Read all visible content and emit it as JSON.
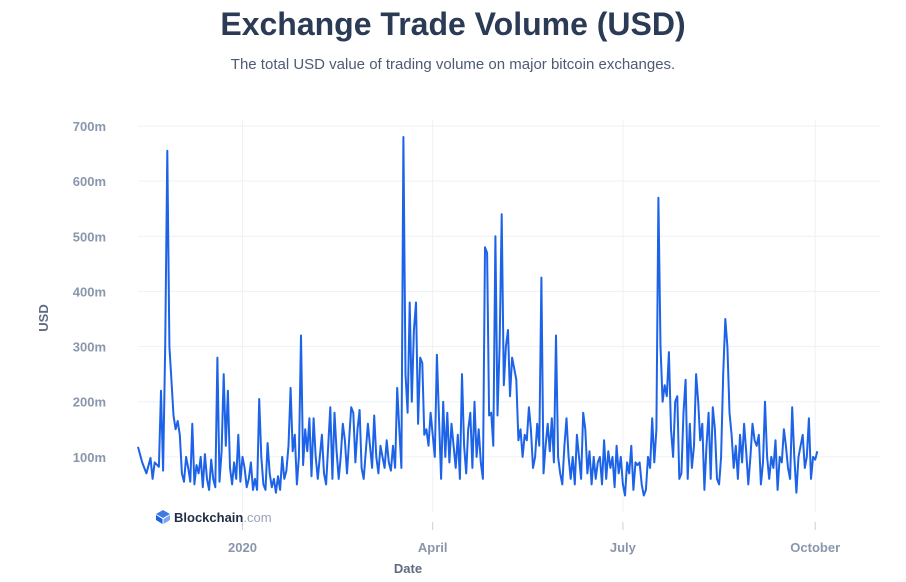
{
  "title": "Exchange Trade Volume (USD)",
  "subtitle": "The total USD value of trading volume on major bitcoin exchanges.",
  "watermark": {
    "brand": "Blockchain",
    "suffix": ".com"
  },
  "colors": {
    "line": "#1d63e8",
    "grid": "#eef1f5",
    "tick": "#8a96ab",
    "title": "#2b3a55"
  },
  "chart_data": {
    "type": "line",
    "title": "Exchange Trade Volume (USD)",
    "subtitle": "The total USD value of trading volume on major bitcoin exchanges.",
    "xlabel": "Date",
    "ylabel": "USD",
    "ylim": [
      0,
      700
    ],
    "y_unit": "million USD",
    "yticks": [
      100,
      200,
      300,
      400,
      500,
      600,
      700
    ],
    "ytick_labels": [
      "100m",
      "200m",
      "300m",
      "400m",
      "500m",
      "600m",
      "700m"
    ],
    "xlim_days": [
      -50,
      305
    ],
    "x_unit": "days since 2020-01-01",
    "xticks": [
      0,
      91,
      182,
      274
    ],
    "xtick_labels": [
      "2020",
      "April",
      "July",
      "October"
    ],
    "grid": true,
    "legend": "none",
    "keypoints": [
      [
        -50,
        118
      ],
      [
        -48,
        90
      ],
      [
        -46,
        70
      ],
      [
        -44,
        98
      ],
      [
        -43,
        60
      ],
      [
        -42,
        90
      ],
      [
        -40,
        82
      ],
      [
        -39,
        220
      ],
      [
        -38,
        75
      ],
      [
        -37,
        300
      ],
      [
        -36,
        655
      ],
      [
        -35,
        300
      ],
      [
        -34,
        240
      ],
      [
        -33,
        175
      ],
      [
        -32,
        150
      ],
      [
        -31,
        165
      ],
      [
        -30,
        140
      ],
      [
        -29,
        70
      ],
      [
        -28,
        55
      ],
      [
        -27,
        100
      ],
      [
        -26,
        80
      ],
      [
        -25,
        55
      ],
      [
        -24,
        160
      ],
      [
        -23,
        50
      ],
      [
        -22,
        85
      ],
      [
        -21,
        70
      ],
      [
        -20,
        100
      ],
      [
        -19,
        45
      ],
      [
        -18,
        105
      ],
      [
        -17,
        60
      ],
      [
        -16,
        40
      ],
      [
        -15,
        95
      ],
      [
        -14,
        60
      ],
      [
        -13,
        45
      ],
      [
        -12,
        280
      ],
      [
        -11,
        55
      ],
      [
        -10,
        110
      ],
      [
        -9,
        250
      ],
      [
        -8,
        120
      ],
      [
        -7,
        220
      ],
      [
        -6,
        80
      ],
      [
        -5,
        50
      ],
      [
        -4,
        90
      ],
      [
        -3,
        60
      ],
      [
        -2,
        140
      ],
      [
        -1,
        55
      ],
      [
        0,
        100
      ],
      [
        1,
        80
      ],
      [
        2,
        45
      ],
      [
        3,
        60
      ],
      [
        4,
        90
      ],
      [
        5,
        40
      ],
      [
        6,
        60
      ],
      [
        7,
        40
      ],
      [
        8,
        205
      ],
      [
        9,
        100
      ],
      [
        10,
        50
      ],
      [
        11,
        40
      ],
      [
        12,
        125
      ],
      [
        13,
        70
      ],
      [
        14,
        45
      ],
      [
        15,
        60
      ],
      [
        16,
        35
      ],
      [
        17,
        65
      ],
      [
        18,
        40
      ],
      [
        19,
        100
      ],
      [
        20,
        60
      ],
      [
        21,
        75
      ],
      [
        22,
        120
      ],
      [
        23,
        225
      ],
      [
        24,
        110
      ],
      [
        25,
        140
      ],
      [
        26,
        50
      ],
      [
        27,
        100
      ],
      [
        28,
        320
      ],
      [
        29,
        85
      ],
      [
        30,
        150
      ],
      [
        31,
        110
      ],
      [
        32,
        170
      ],
      [
        33,
        65
      ],
      [
        34,
        170
      ],
      [
        35,
        100
      ],
      [
        36,
        60
      ],
      [
        37,
        100
      ],
      [
        38,
        140
      ],
      [
        39,
        70
      ],
      [
        40,
        50
      ],
      [
        41,
        120
      ],
      [
        42,
        190
      ],
      [
        43,
        60
      ],
      [
        44,
        180
      ],
      [
        45,
        110
      ],
      [
        46,
        60
      ],
      [
        47,
        100
      ],
      [
        48,
        160
      ],
      [
        49,
        130
      ],
      [
        50,
        70
      ],
      [
        51,
        130
      ],
      [
        52,
        190
      ],
      [
        53,
        180
      ],
      [
        54,
        90
      ],
      [
        55,
        150
      ],
      [
        56,
        185
      ],
      [
        57,
        80
      ],
      [
        58,
        60
      ],
      [
        59,
        110
      ],
      [
        60,
        160
      ],
      [
        61,
        120
      ],
      [
        62,
        80
      ],
      [
        63,
        175
      ],
      [
        64,
        100
      ],
      [
        65,
        70
      ],
      [
        66,
        120
      ],
      [
        67,
        100
      ],
      [
        68,
        80
      ],
      [
        69,
        130
      ],
      [
        70,
        90
      ],
      [
        71,
        75
      ],
      [
        72,
        120
      ],
      [
        73,
        80
      ],
      [
        74,
        225
      ],
      [
        75,
        150
      ],
      [
        76,
        80
      ],
      [
        77,
        680
      ],
      [
        78,
        250
      ],
      [
        79,
        180
      ],
      [
        80,
        380
      ],
      [
        81,
        200
      ],
      [
        82,
        330
      ],
      [
        83,
        380
      ],
      [
        84,
        160
      ],
      [
        85,
        280
      ],
      [
        86,
        270
      ],
      [
        87,
        140
      ],
      [
        88,
        150
      ],
      [
        89,
        120
      ],
      [
        90,
        180
      ],
      [
        91,
        140
      ],
      [
        92,
        100
      ],
      [
        93,
        285
      ],
      [
        94,
        170
      ],
      [
        95,
        60
      ],
      [
        96,
        200
      ],
      [
        97,
        100
      ],
      [
        98,
        180
      ],
      [
        99,
        90
      ],
      [
        100,
        160
      ],
      [
        101,
        120
      ],
      [
        102,
        80
      ],
      [
        103,
        140
      ],
      [
        104,
        60
      ],
      [
        105,
        250
      ],
      [
        106,
        120
      ],
      [
        107,
        70
      ],
      [
        108,
        150
      ],
      [
        109,
        180
      ],
      [
        110,
        80
      ],
      [
        111,
        200
      ],
      [
        112,
        100
      ],
      [
        113,
        150
      ],
      [
        114,
        90
      ],
      [
        115,
        60
      ],
      [
        116,
        480
      ],
      [
        117,
        470
      ],
      [
        118,
        175
      ],
      [
        119,
        180
      ],
      [
        120,
        120
      ],
      [
        121,
        500
      ],
      [
        122,
        175
      ],
      [
        123,
        300
      ],
      [
        124,
        540
      ],
      [
        125,
        230
      ],
      [
        126,
        300
      ],
      [
        127,
        330
      ],
      [
        128,
        210
      ],
      [
        129,
        280
      ],
      [
        130,
        260
      ],
      [
        131,
        240
      ],
      [
        132,
        130
      ],
      [
        133,
        150
      ],
      [
        134,
        100
      ],
      [
        135,
        140
      ],
      [
        136,
        130
      ],
      [
        137,
        190
      ],
      [
        138,
        150
      ],
      [
        139,
        80
      ],
      [
        140,
        100
      ],
      [
        141,
        160
      ],
      [
        142,
        120
      ],
      [
        143,
        425
      ],
      [
        144,
        70
      ],
      [
        145,
        120
      ],
      [
        146,
        160
      ],
      [
        147,
        110
      ],
      [
        148,
        170
      ],
      [
        149,
        90
      ],
      [
        150,
        320
      ],
      [
        151,
        100
      ],
      [
        152,
        70
      ],
      [
        153,
        50
      ],
      [
        154,
        120
      ],
      [
        155,
        170
      ],
      [
        156,
        100
      ],
      [
        157,
        60
      ],
      [
        158,
        100
      ],
      [
        159,
        50
      ],
      [
        160,
        140
      ],
      [
        161,
        100
      ],
      [
        162,
        60
      ],
      [
        163,
        180
      ],
      [
        164,
        150
      ],
      [
        165,
        70
      ],
      [
        166,
        110
      ],
      [
        167,
        50
      ],
      [
        168,
        100
      ],
      [
        169,
        60
      ],
      [
        170,
        90
      ],
      [
        171,
        100
      ],
      [
        172,
        50
      ],
      [
        173,
        130
      ],
      [
        174,
        60
      ],
      [
        175,
        110
      ],
      [
        176,
        80
      ],
      [
        177,
        100
      ],
      [
        178,
        45
      ],
      [
        179,
        120
      ],
      [
        180,
        70
      ],
      [
        181,
        100
      ],
      [
        182,
        50
      ],
      [
        183,
        30
      ],
      [
        184,
        90
      ],
      [
        185,
        70
      ],
      [
        186,
        120
      ],
      [
        187,
        40
      ],
      [
        188,
        90
      ],
      [
        189,
        85
      ],
      [
        190,
        90
      ],
      [
        191,
        50
      ],
      [
        192,
        30
      ],
      [
        193,
        40
      ],
      [
        194,
        100
      ],
      [
        195,
        80
      ],
      [
        196,
        170
      ],
      [
        197,
        90
      ],
      [
        198,
        150
      ],
      [
        199,
        570
      ],
      [
        200,
        300
      ],
      [
        201,
        200
      ],
      [
        202,
        230
      ],
      [
        203,
        210
      ],
      [
        204,
        290
      ],
      [
        205,
        150
      ],
      [
        206,
        100
      ],
      [
        207,
        200
      ],
      [
        208,
        210
      ],
      [
        209,
        60
      ],
      [
        210,
        70
      ],
      [
        211,
        180
      ],
      [
        212,
        240
      ],
      [
        213,
        60
      ],
      [
        214,
        160
      ],
      [
        215,
        80
      ],
      [
        216,
        120
      ],
      [
        217,
        250
      ],
      [
        218,
        200
      ],
      [
        219,
        130
      ],
      [
        220,
        160
      ],
      [
        221,
        40
      ],
      [
        222,
        120
      ],
      [
        223,
        180
      ],
      [
        224,
        60
      ],
      [
        225,
        190
      ],
      [
        226,
        150
      ],
      [
        227,
        60
      ],
      [
        228,
        50
      ],
      [
        229,
        100
      ],
      [
        230,
        250
      ],
      [
        231,
        350
      ],
      [
        232,
        300
      ],
      [
        233,
        180
      ],
      [
        234,
        140
      ],
      [
        235,
        80
      ],
      [
        236,
        120
      ],
      [
        237,
        60
      ],
      [
        238,
        140
      ],
      [
        239,
        90
      ],
      [
        240,
        160
      ],
      [
        241,
        110
      ],
      [
        242,
        50
      ],
      [
        243,
        100
      ],
      [
        244,
        160
      ],
      [
        245,
        130
      ],
      [
        246,
        120
      ],
      [
        247,
        140
      ],
      [
        248,
        50
      ],
      [
        249,
        90
      ],
      [
        250,
        200
      ],
      [
        251,
        100
      ],
      [
        252,
        60
      ],
      [
        253,
        100
      ],
      [
        254,
        80
      ],
      [
        255,
        130
      ],
      [
        256,
        40
      ],
      [
        257,
        100
      ],
      [
        258,
        90
      ],
      [
        259,
        150
      ],
      [
        260,
        120
      ],
      [
        261,
        80
      ],
      [
        262,
        60
      ],
      [
        263,
        190
      ],
      [
        264,
        100
      ],
      [
        265,
        35
      ],
      [
        266,
        100
      ],
      [
        267,
        120
      ],
      [
        268,
        140
      ],
      [
        269,
        80
      ],
      [
        270,
        100
      ],
      [
        271,
        170
      ],
      [
        272,
        60
      ],
      [
        273,
        100
      ],
      [
        274,
        95
      ],
      [
        275,
        110
      ]
    ]
  }
}
